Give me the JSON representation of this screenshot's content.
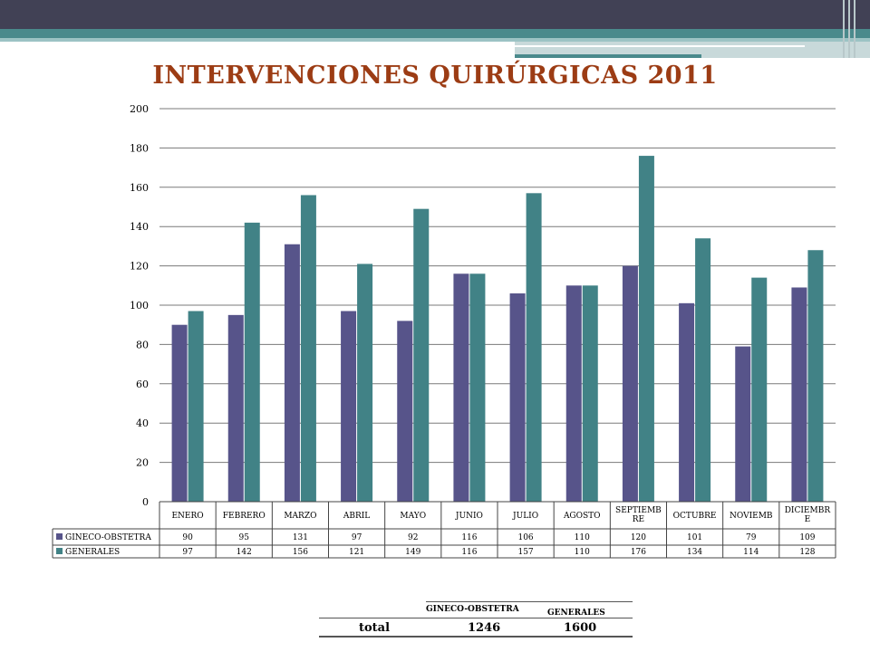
{
  "title": "INTERVENCIONES QUIRÚRGICAS 2011",
  "chart_data": {
    "type": "bar",
    "title": "INTERVENCIONES QUIRÚRGICAS 2011",
    "categories": [
      "ENERO",
      "FEBRERO",
      "MARZO",
      "ABRIL",
      "MAYO",
      "JUNIO",
      "JULIO",
      "AGOSTO",
      "SEPTIEMBRE",
      "OCTUBRE",
      "NOVIEMB",
      "DICIEMBRE"
    ],
    "category_labels": [
      [
        "ENERO"
      ],
      [
        "FEBRERO"
      ],
      [
        "MARZO"
      ],
      [
        "ABRIL"
      ],
      [
        "MAYO"
      ],
      [
        "JUNIO"
      ],
      [
        "JULIO"
      ],
      [
        "AGOSTO"
      ],
      [
        "SEPTIEMB",
        "RE"
      ],
      [
        "OCTUBRE"
      ],
      [
        "NOVIEMB"
      ],
      [
        "DICIEMBR",
        "E"
      ]
    ],
    "series": [
      {
        "name": "GINECO-OBSTETRA",
        "color": "#57548a",
        "values": [
          90,
          95,
          131,
          97,
          92,
          116,
          106,
          110,
          120,
          101,
          79,
          109
        ]
      },
      {
        "name": "GENERALES",
        "color": "#418286",
        "values": [
          97,
          142,
          156,
          121,
          149,
          116,
          157,
          110,
          176,
          134,
          114,
          128
        ]
      }
    ],
    "ylim": [
      0,
      200
    ],
    "yticks": [
      0,
      20,
      40,
      60,
      80,
      100,
      120,
      140,
      160,
      180,
      200
    ],
    "grid": true,
    "legend": "data-table"
  },
  "summary": {
    "col1": "GINECO-OBSTETRA",
    "col2": "GENERALES",
    "row_label": "total",
    "val1": "1246",
    "val2": "1600"
  }
}
